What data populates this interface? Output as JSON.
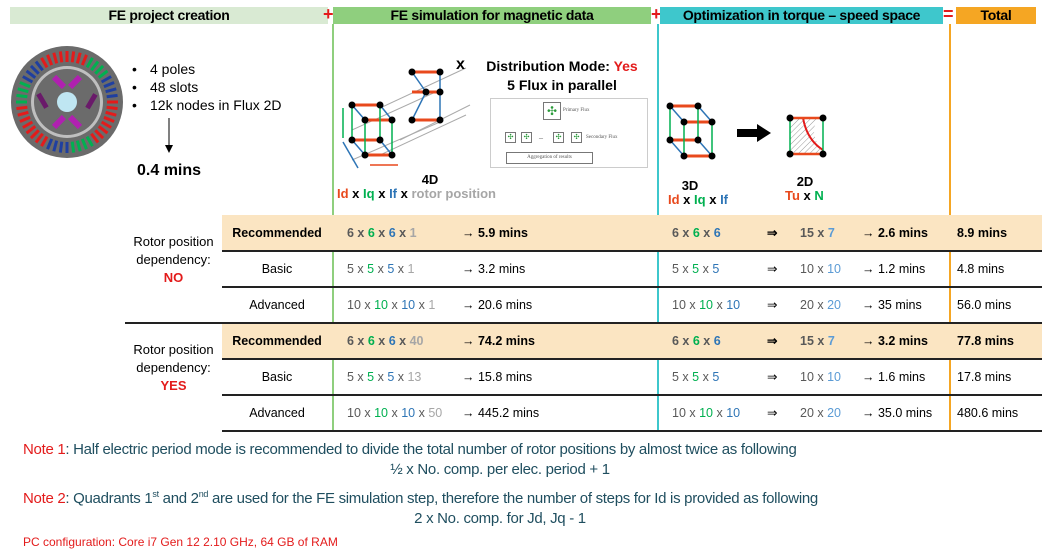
{
  "header": {
    "sections": [
      {
        "label": "FE project creation",
        "color": "#d9ead3"
      },
      {
        "label": "FE simulation for magnetic data",
        "color": "#8fcf7e"
      },
      {
        "label": "Optimization in torque – speed space",
        "color": "#3ec7cc"
      },
      {
        "label": "Total",
        "color": "#f5a623"
      }
    ],
    "operators": [
      "+",
      "+",
      "="
    ]
  },
  "project": {
    "bullets": [
      "4 poles",
      "48 slots",
      "12k nodes in Flux 2D"
    ],
    "time": "0.4 mins"
  },
  "simulation": {
    "cross": "x",
    "distribution_label": "Distribution Mode: ",
    "distribution_value": "Yes",
    "parallel": "5 Flux in parallel",
    "flux_diagram": {
      "primary": "Primary Flux",
      "secondary": "Secondary Flux",
      "aggregation": "Aggregation of results",
      "dash": "–"
    },
    "dim_label": "4D",
    "dims": [
      [
        "Id",
        "red"
      ],
      [
        " x ",
        "black"
      ],
      [
        "Iq",
        "green"
      ],
      [
        " x ",
        "black"
      ],
      [
        "If",
        "blue"
      ],
      [
        " x ",
        "black"
      ],
      [
        "rotor position",
        "lgray"
      ]
    ]
  },
  "optimization": {
    "dim3_label": "3D",
    "dims3": [
      [
        "Id",
        "red"
      ],
      [
        " x ",
        "black"
      ],
      [
        "Iq",
        "green"
      ],
      [
        " x ",
        "black"
      ],
      [
        "If",
        "blue"
      ]
    ],
    "dim2_label": "2D",
    "dims2": [
      [
        "Tu",
        "red"
      ],
      [
        " x ",
        "black"
      ],
      [
        "N",
        "green"
      ]
    ]
  },
  "groups": [
    {
      "label": "Rotor position dependency:",
      "flag": "NO"
    },
    {
      "label": "Rotor position dependency:",
      "flag": "YES"
    }
  ],
  "rows": [
    {
      "mode": "Recommended",
      "rec": true,
      "sim": [
        [
          "6",
          "gray"
        ],
        [
          " x ",
          "gray"
        ],
        [
          "6",
          "green"
        ],
        [
          " x ",
          "gray"
        ],
        [
          "6",
          "blue"
        ],
        [
          " x ",
          "gray"
        ],
        [
          "1",
          "lgray"
        ]
      ],
      "sim_time": "→ 5.9 mins",
      "opt": [
        [
          "6",
          "gray"
        ],
        [
          " x ",
          "gray"
        ],
        [
          "6",
          "green"
        ],
        [
          " x ",
          "gray"
        ],
        [
          "6",
          "blue"
        ]
      ],
      "opt2": [
        [
          "15",
          "gray"
        ],
        [
          " x ",
          "gray"
        ],
        [
          "7",
          "lblue"
        ]
      ],
      "opt_time": "→ 2.6 mins",
      "total": "8.9 mins"
    },
    {
      "mode": "Basic",
      "rec": false,
      "sim": [
        [
          "5",
          "gray"
        ],
        [
          " x ",
          "gray"
        ],
        [
          "5",
          "green"
        ],
        [
          " x ",
          "gray"
        ],
        [
          "5",
          "blue"
        ],
        [
          " x ",
          "gray"
        ],
        [
          "1",
          "lgray"
        ]
      ],
      "sim_time": "→ 3.2 mins",
      "opt": [
        [
          "5",
          "gray"
        ],
        [
          " x ",
          "gray"
        ],
        [
          "5",
          "green"
        ],
        [
          " x ",
          "gray"
        ],
        [
          "5",
          "blue"
        ]
      ],
      "opt2": [
        [
          "10",
          "gray"
        ],
        [
          " x ",
          "gray"
        ],
        [
          "10",
          "lblue"
        ]
      ],
      "opt_time": "→ 1.2 mins",
      "total": "4.8 mins"
    },
    {
      "mode": "Advanced",
      "rec": false,
      "sim": [
        [
          "10",
          "gray"
        ],
        [
          " x ",
          "gray"
        ],
        [
          "10",
          "green"
        ],
        [
          " x ",
          "gray"
        ],
        [
          "10",
          "blue"
        ],
        [
          " x ",
          "gray"
        ],
        [
          "1",
          "lgray"
        ]
      ],
      "sim_time": "→ 20.6 mins",
      "opt": [
        [
          "10",
          "gray"
        ],
        [
          " x ",
          "gray"
        ],
        [
          "10",
          "green"
        ],
        [
          " x ",
          "gray"
        ],
        [
          "10",
          "blue"
        ]
      ],
      "opt2": [
        [
          "20",
          "gray"
        ],
        [
          " x ",
          "gray"
        ],
        [
          "20",
          "lblue"
        ]
      ],
      "opt_time": "→ 35 mins",
      "total": "56.0 mins"
    },
    {
      "mode": "Recommended",
      "rec": true,
      "sim": [
        [
          "6",
          "gray"
        ],
        [
          " x ",
          "gray"
        ],
        [
          "6",
          "green"
        ],
        [
          " x ",
          "gray"
        ],
        [
          "6",
          "blue"
        ],
        [
          " x ",
          "gray"
        ],
        [
          "40",
          "lgray"
        ]
      ],
      "sim_time": "→ 74.2 mins",
      "opt": [
        [
          "6",
          "gray"
        ],
        [
          " x ",
          "gray"
        ],
        [
          "6",
          "green"
        ],
        [
          " x ",
          "gray"
        ],
        [
          "6",
          "blue"
        ]
      ],
      "opt2": [
        [
          "15",
          "gray"
        ],
        [
          " x ",
          "gray"
        ],
        [
          "7",
          "lblue"
        ]
      ],
      "opt_time": "→ 3.2 mins",
      "total": "77.8 mins"
    },
    {
      "mode": "Basic",
      "rec": false,
      "sim": [
        [
          "5",
          "gray"
        ],
        [
          " x ",
          "gray"
        ],
        [
          "5",
          "green"
        ],
        [
          " x ",
          "gray"
        ],
        [
          "5",
          "blue"
        ],
        [
          " x ",
          "gray"
        ],
        [
          "13",
          "lgray"
        ]
      ],
      "sim_time": "→ 15.8 mins",
      "opt": [
        [
          "5",
          "gray"
        ],
        [
          " x ",
          "gray"
        ],
        [
          "5",
          "green"
        ],
        [
          " x ",
          "gray"
        ],
        [
          "5",
          "blue"
        ]
      ],
      "opt2": [
        [
          "10",
          "gray"
        ],
        [
          " x ",
          "gray"
        ],
        [
          "10",
          "lblue"
        ]
      ],
      "opt_time": "→ 1.6 mins",
      "total": "17.8 mins"
    },
    {
      "mode": "Advanced",
      "rec": false,
      "sim": [
        [
          "10",
          "gray"
        ],
        [
          " x ",
          "gray"
        ],
        [
          "10",
          "green"
        ],
        [
          " x ",
          "gray"
        ],
        [
          "10",
          "blue"
        ],
        [
          " x ",
          "gray"
        ],
        [
          "50",
          "lgray"
        ]
      ],
      "sim_time": "→ 445.2 mins",
      "opt": [
        [
          "10",
          "gray"
        ],
        [
          " x ",
          "gray"
        ],
        [
          "10",
          "green"
        ],
        [
          " x ",
          "gray"
        ],
        [
          "10",
          "blue"
        ]
      ],
      "opt2": [
        [
          "20",
          "gray"
        ],
        [
          " x ",
          "gray"
        ],
        [
          "20",
          "lblue"
        ]
      ],
      "opt_time": "→ 35.0 mins",
      "total": "480.6 mins"
    }
  ],
  "implies": "⇒",
  "notes": {
    "note1_label": "Note 1",
    "note1_text": ": Half electric period mode is recommended to divide the total number of rotor positions by almost twice as following",
    "note1_formula": "½ x No. comp. per elec. period + 1",
    "note2_label": "Note 2",
    "note2_a": ": Quadrants 1",
    "note2_sup1": "st",
    "note2_b": " and 2",
    "note2_sup2": "nd",
    "note2_c": " are used for the FE simulation step, therefore the number of steps for Id is provided as following",
    "note2_formula": "2 x No. comp. for Jd, Jq - 1",
    "pc_config": "PC configuration: Core i7 Gen 12 2.10 GHz, 64 GB of RAM"
  }
}
